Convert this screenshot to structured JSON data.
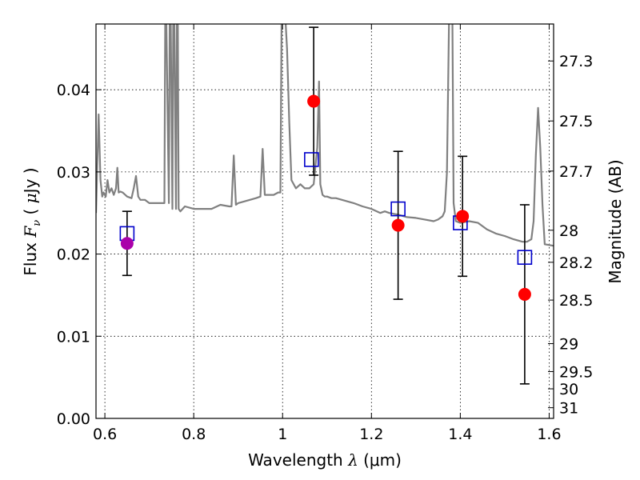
{
  "chart_data": {
    "type": "scatter",
    "xlabel": "Wavelength  λ (μm)",
    "ylabel": "Flux  F_ν  ( μJy )",
    "ylabel_parts": {
      "prefix": "Flux ",
      "var": "F",
      "sub": "ν",
      "unit_open": " ( ",
      "unit_mu": "μ",
      "unit_rest": "Jy )"
    },
    "xlabel_parts": {
      "prefix": "Wavelength ",
      "var": "λ",
      "unit": " (μm)"
    },
    "ylabel_right": "Magnitude (AB)",
    "xlim": [
      0.58,
      1.61
    ],
    "ylim": [
      0.0,
      0.048
    ],
    "grid": true,
    "x_ticks": [
      {
        "value": 0.6,
        "label": "0.6"
      },
      {
        "value": 0.8,
        "label": "0.8"
      },
      {
        "value": 1.0,
        "label": "1"
      },
      {
        "value": 1.2,
        "label": "1.2"
      },
      {
        "value": 1.4,
        "label": "1.4"
      },
      {
        "value": 1.6,
        "label": "1.6"
      }
    ],
    "y_ticks": [
      {
        "value": 0.0,
        "label": "0.00"
      },
      {
        "value": 0.01,
        "label": "0.01"
      },
      {
        "value": 0.02,
        "label": "0.02"
      },
      {
        "value": 0.03,
        "label": "0.03"
      },
      {
        "value": 0.04,
        "label": "0.04"
      }
    ],
    "right_ticks": [
      {
        "flux": 0.0435,
        "label": "27.3"
      },
      {
        "flux": 0.0362,
        "label": "27.5"
      },
      {
        "flux": 0.0301,
        "label": "27.7"
      },
      {
        "flux": 0.0229,
        "label": "28"
      },
      {
        "flux": 0.019,
        "label": "28.2"
      },
      {
        "flux": 0.0144,
        "label": "28.5"
      },
      {
        "flux": 0.0091,
        "label": "29"
      },
      {
        "flux": 0.0057,
        "label": "29.5"
      },
      {
        "flux": 0.0036,
        "label": "30"
      },
      {
        "flux": 0.0013,
        "label": "31"
      }
    ],
    "colors": {
      "spectrum": "#808080",
      "observed": "#ff0000",
      "observed_edge": "#cc0000",
      "first_point": "#aa00aa",
      "model": "#0000cc",
      "errorbar": "#000000"
    },
    "spectrum": {
      "x": [
        0.58,
        0.586,
        0.59,
        0.594,
        0.597,
        0.602,
        0.606,
        0.61,
        0.615,
        0.62,
        0.625,
        0.628,
        0.631,
        0.635,
        0.64,
        0.65,
        0.66,
        0.665,
        0.67,
        0.675,
        0.68,
        0.69,
        0.7,
        0.71,
        0.72,
        0.73,
        0.734,
        0.736,
        0.738,
        0.744,
        0.746,
        0.748,
        0.752,
        0.754,
        0.756,
        0.76,
        0.762,
        0.764,
        0.766,
        0.77,
        0.78,
        0.8,
        0.82,
        0.84,
        0.86,
        0.88,
        0.885,
        0.89,
        0.895,
        0.9,
        0.92,
        0.94,
        0.95,
        0.955,
        0.96,
        0.97,
        0.98,
        0.99,
        0.995,
        0.998,
        1.0,
        1.002,
        1.005,
        1.01,
        1.015,
        1.02,
        1.03,
        1.04,
        1.05,
        1.06,
        1.07,
        1.078,
        1.082,
        1.085,
        1.09,
        1.095,
        1.1,
        1.11,
        1.12,
        1.14,
        1.16,
        1.18,
        1.2,
        1.22,
        1.23,
        1.24,
        1.26,
        1.28,
        1.3,
        1.32,
        1.34,
        1.35,
        1.36,
        1.365,
        1.37,
        1.375,
        1.378,
        1.38,
        1.382,
        1.385,
        1.39,
        1.4,
        1.42,
        1.44,
        1.46,
        1.48,
        1.5,
        1.52,
        1.54,
        1.55,
        1.56,
        1.565,
        1.57,
        1.575,
        1.58,
        1.585,
        1.59,
        1.61
      ],
      "y": [
        0.025,
        0.037,
        0.029,
        0.027,
        0.0275,
        0.027,
        0.029,
        0.0275,
        0.028,
        0.0272,
        0.028,
        0.0305,
        0.0275,
        0.0276,
        0.0275,
        0.027,
        0.0268,
        0.028,
        0.0295,
        0.027,
        0.0266,
        0.0266,
        0.0262,
        0.0262,
        0.0262,
        0.0262,
        0.0262,
        0.05,
        0.05,
        0.0262,
        0.05,
        0.05,
        0.0255,
        0.05,
        0.05,
        0.0255,
        0.05,
        0.05,
        0.0255,
        0.0252,
        0.0258,
        0.0255,
        0.0255,
        0.0255,
        0.026,
        0.0258,
        0.0258,
        0.032,
        0.026,
        0.0262,
        0.0265,
        0.0268,
        0.027,
        0.0328,
        0.0272,
        0.0272,
        0.0272,
        0.0275,
        0.0275,
        0.05,
        0.05,
        0.05,
        0.05,
        0.045,
        0.036,
        0.029,
        0.028,
        0.0285,
        0.028,
        0.028,
        0.0285,
        0.033,
        0.041,
        0.0285,
        0.0272,
        0.027,
        0.027,
        0.0268,
        0.0268,
        0.0265,
        0.0262,
        0.0258,
        0.0255,
        0.025,
        0.0252,
        0.025,
        0.0248,
        0.0245,
        0.0244,
        0.0242,
        0.024,
        0.0242,
        0.0246,
        0.0252,
        0.03,
        0.05,
        0.05,
        0.05,
        0.05,
        0.0262,
        0.024,
        0.0238,
        0.024,
        0.0238,
        0.023,
        0.0225,
        0.0222,
        0.0218,
        0.0215,
        0.0215,
        0.0218,
        0.024,
        0.032,
        0.0378,
        0.033,
        0.026,
        0.0212,
        0.021
      ]
    },
    "model_points": [
      {
        "x": 0.65,
        "y": 0.0225
      },
      {
        "x": 1.065,
        "y": 0.0315
      },
      {
        "x": 1.26,
        "y": 0.0255
      },
      {
        "x": 1.4,
        "y": 0.0238
      },
      {
        "x": 1.545,
        "y": 0.0196
      }
    ],
    "observed_points": [
      {
        "x": 0.65,
        "y": 0.0213,
        "err": 0.0039,
        "color": "first_point"
      },
      {
        "x": 1.07,
        "y": 0.0386,
        "err": 0.009,
        "color": "observed"
      },
      {
        "x": 1.26,
        "y": 0.0235,
        "err": 0.009,
        "color": "observed"
      },
      {
        "x": 1.405,
        "y": 0.0246,
        "err": 0.0073,
        "color": "observed"
      },
      {
        "x": 1.545,
        "y": 0.0151,
        "err": 0.0109,
        "color": "observed"
      }
    ]
  }
}
